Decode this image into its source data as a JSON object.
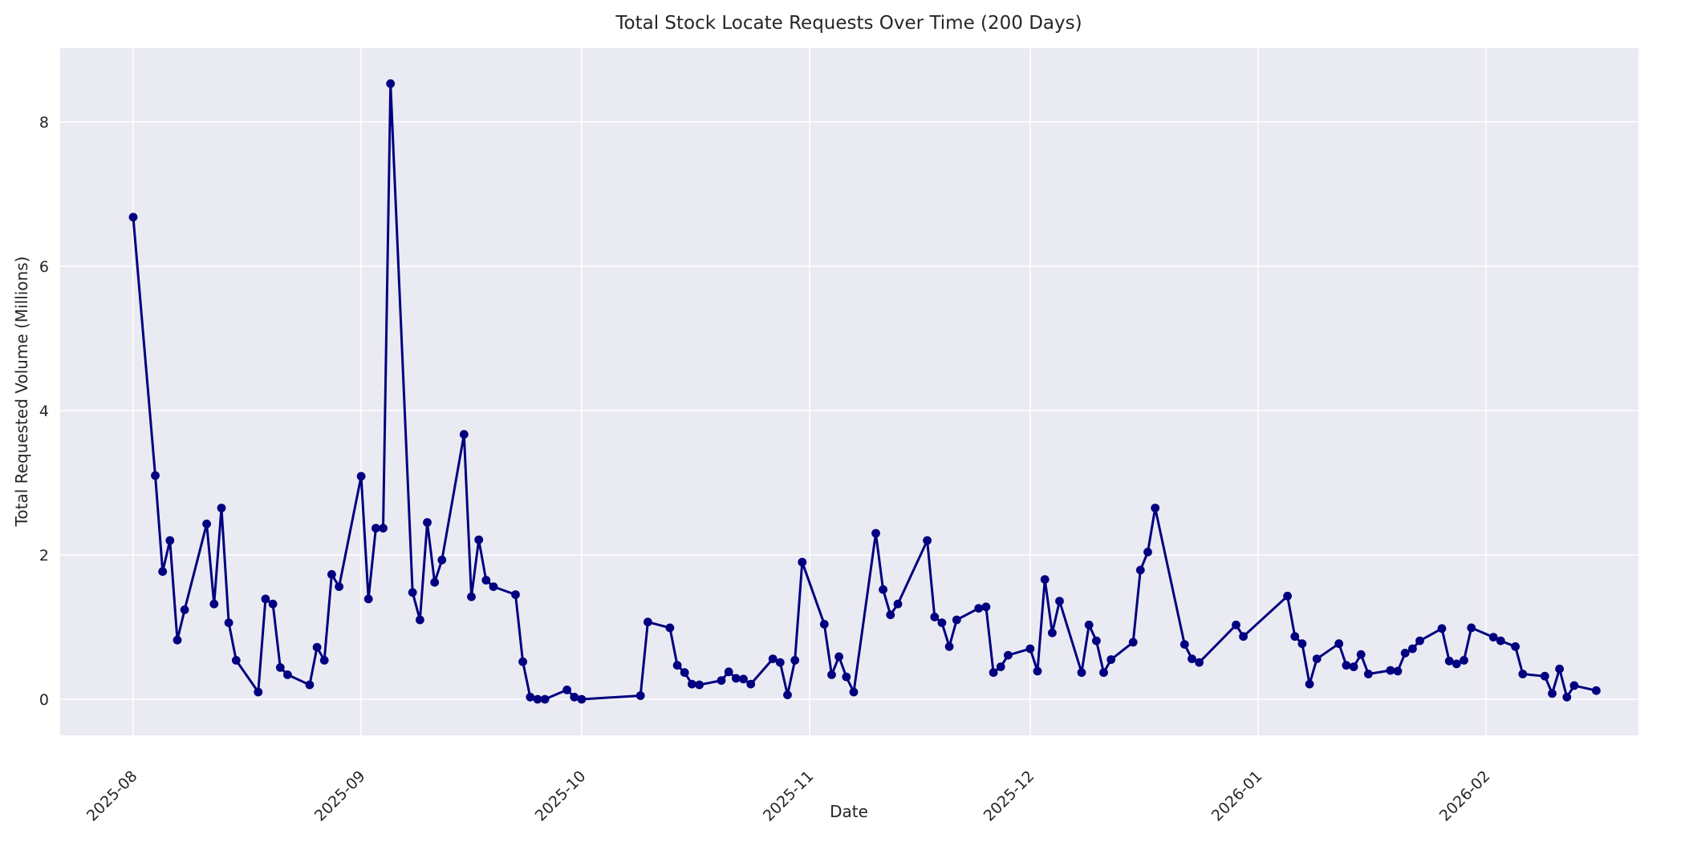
{
  "header": {
    "title": "Total Stock Locate Requests Over Time (200 Days)"
  },
  "chart_data": {
    "type": "line",
    "title": "Total Stock Locate Requests Over Time (200 Days)",
    "xlabel": "Date",
    "ylabel": "Total Requested Volume (Millions)",
    "ylim": [
      -0.5,
      9.0
    ],
    "yticks": [
      0,
      2,
      4,
      6,
      8
    ],
    "x_ticks": [
      {
        "label": "2025-08",
        "date": "2025-08-01"
      },
      {
        "label": "2025-09",
        "date": "2025-09-01"
      },
      {
        "label": "2025-10",
        "date": "2025-10-01"
      },
      {
        "label": "2025-11",
        "date": "2025-11-01"
      },
      {
        "label": "2025-12",
        "date": "2025-12-01"
      },
      {
        "label": "2026-01",
        "date": "2026-01-01"
      },
      {
        "label": "2026-02",
        "date": "2026-02-01"
      }
    ],
    "grid": true,
    "legend": "none",
    "series_name": "Total Stock Locate Requests",
    "colors": {
      "line": "#000080",
      "marker": "#000080",
      "plot_background": "#eaeaf2",
      "gridline": "#ffffff",
      "text": "#262626",
      "figure_background": "#ffffff"
    },
    "x": [
      "2025-08-01",
      "2025-08-04",
      "2025-08-05",
      "2025-08-06",
      "2025-08-07",
      "2025-08-08",
      "2025-08-11",
      "2025-08-12",
      "2025-08-13",
      "2025-08-14",
      "2025-08-15",
      "2025-08-18",
      "2025-08-19",
      "2025-08-20",
      "2025-08-21",
      "2025-08-22",
      "2025-08-25",
      "2025-08-26",
      "2025-08-27",
      "2025-08-28",
      "2025-08-29",
      "2025-09-01",
      "2025-09-02",
      "2025-09-03",
      "2025-09-04",
      "2025-09-05",
      "2025-09-08",
      "2025-09-09",
      "2025-09-10",
      "2025-09-11",
      "2025-09-12",
      "2025-09-15",
      "2025-09-16",
      "2025-09-17",
      "2025-09-18",
      "2025-09-19",
      "2025-09-22",
      "2025-09-23",
      "2025-09-24",
      "2025-09-25",
      "2025-09-26",
      "2025-09-29",
      "2025-09-30",
      "2025-10-01",
      "2025-10-09",
      "2025-10-10",
      "2025-10-13",
      "2025-10-14",
      "2025-10-15",
      "2025-10-16",
      "2025-10-17",
      "2025-10-20",
      "2025-10-21",
      "2025-10-22",
      "2025-10-23",
      "2025-10-24",
      "2025-10-27",
      "2025-10-28",
      "2025-10-29",
      "2025-10-30",
      "2025-10-31",
      "2025-11-03",
      "2025-11-04",
      "2025-11-05",
      "2025-11-06",
      "2025-11-07",
      "2025-11-10",
      "2025-11-11",
      "2025-11-12",
      "2025-11-13",
      "2025-11-17",
      "2025-11-18",
      "2025-11-19",
      "2025-11-20",
      "2025-11-21",
      "2025-11-24",
      "2025-11-25",
      "2025-11-26",
      "2025-11-27",
      "2025-11-28",
      "2025-12-01",
      "2025-12-02",
      "2025-12-03",
      "2025-12-04",
      "2025-12-05",
      "2025-12-08",
      "2025-12-09",
      "2025-12-10",
      "2025-12-11",
      "2025-12-12",
      "2025-12-15",
      "2025-12-16",
      "2025-12-17",
      "2025-12-18",
      "2025-12-22",
      "2025-12-23",
      "2025-12-24",
      "2025-12-29",
      "2025-12-30",
      "2026-01-05",
      "2026-01-06",
      "2026-01-07",
      "2026-01-08",
      "2026-01-09",
      "2026-01-12",
      "2026-01-13",
      "2026-01-14",
      "2026-01-15",
      "2026-01-16",
      "2026-01-19",
      "2026-01-20",
      "2026-01-21",
      "2026-01-22",
      "2026-01-23",
      "2026-01-26",
      "2026-01-27",
      "2026-01-28",
      "2026-01-29",
      "2026-01-30",
      "2026-02-02",
      "2026-02-03",
      "2026-02-05",
      "2026-02-06",
      "2026-02-09",
      "2026-02-10",
      "2026-02-11",
      "2026-02-12",
      "2026-02-13",
      "2026-02-16"
    ],
    "values": [
      6.68,
      3.1,
      1.77,
      2.2,
      0.82,
      1.24,
      2.43,
      1.32,
      2.65,
      1.06,
      0.54,
      0.1,
      1.39,
      1.32,
      0.44,
      0.34,
      0.2,
      0.72,
      0.54,
      1.73,
      1.56,
      3.09,
      1.39,
      2.37,
      2.37,
      8.53,
      1.48,
      1.1,
      2.45,
      1.62,
      1.93,
      3.67,
      1.42,
      2.21,
      1.65,
      1.56,
      1.45,
      0.52,
      0.03,
      0.0,
      0.0,
      0.13,
      0.03,
      0.0,
      0.05,
      1.07,
      0.99,
      0.47,
      0.37,
      0.21,
      0.2,
      0.26,
      0.38,
      0.29,
      0.28,
      0.21,
      0.56,
      0.51,
      0.06,
      0.54,
      1.9,
      1.04,
      0.34,
      0.59,
      0.31,
      0.1,
      2.3,
      1.52,
      1.17,
      1.32,
      2.2,
      1.14,
      1.06,
      0.73,
      1.1,
      1.26,
      1.28,
      0.37,
      0.45,
      0.61,
      0.7,
      0.39,
      1.66,
      0.92,
      1.36,
      0.37,
      1.03,
      0.81,
      0.37,
      0.55,
      0.79,
      1.79,
      2.04,
      2.65,
      0.76,
      0.56,
      0.51,
      1.03,
      0.87,
      1.43,
      0.87,
      0.77,
      0.21,
      0.56,
      0.77,
      0.47,
      0.45,
      0.62,
      0.35,
      0.4,
      0.39,
      0.64,
      0.7,
      0.81,
      0.98,
      0.53,
      0.49,
      0.54,
      0.99,
      0.86,
      0.81,
      0.73,
      0.35,
      0.32,
      0.08,
      0.42,
      0.03,
      0.19,
      0.12
    ]
  }
}
